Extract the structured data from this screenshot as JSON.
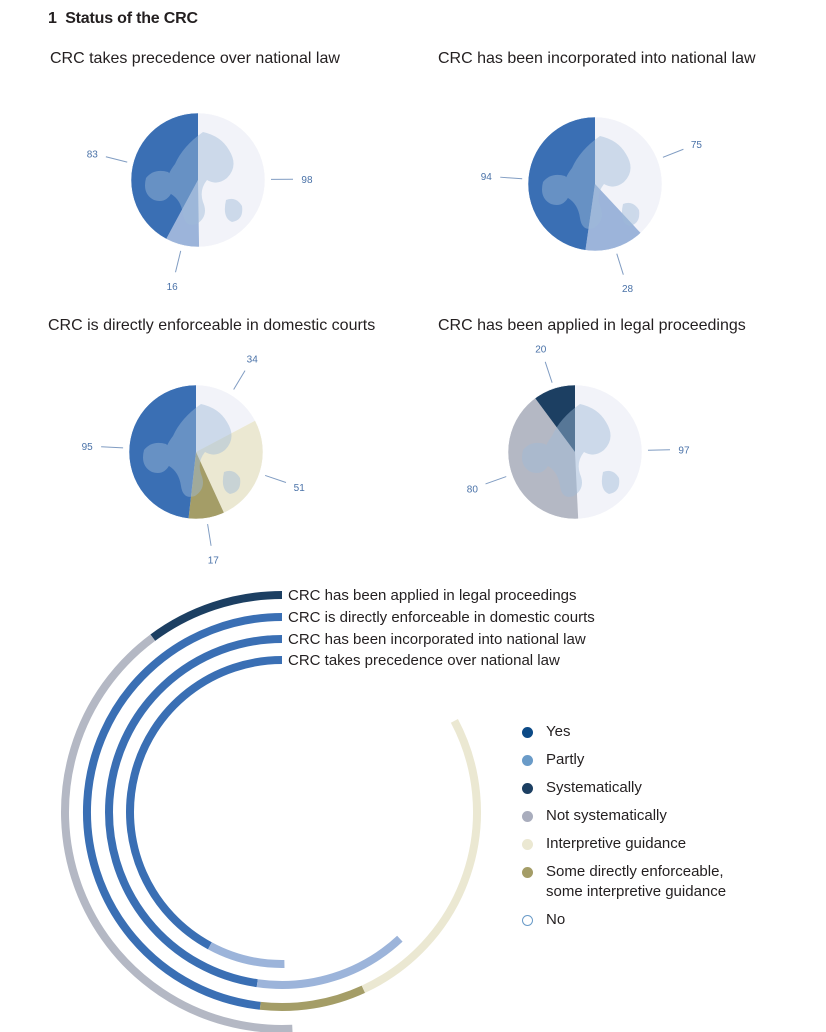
{
  "header": {
    "number": "1",
    "title": "Status of the CRC"
  },
  "colors": {
    "yes": "#3a6fb4",
    "partly": "#9cb4da",
    "systematically": "#1c3f62",
    "not_systematically": "#b4b8c4",
    "interpretive_guidance": "#ebe8d2",
    "some_enforceable": "#a49d67",
    "no": "#f2f3f9",
    "no_border": "#6a9bc8",
    "label": "#4a72a8",
    "land": "#9fbbd9"
  },
  "legend": [
    {
      "key": "yes",
      "label": "Yes",
      "color": "#0c4a86"
    },
    {
      "key": "partly",
      "label": "Partly",
      "color": "#6a9bc8"
    },
    {
      "key": "systematically",
      "label": "Systematically",
      "color": "#1c3f62"
    },
    {
      "key": "not_systematically",
      "label": "Not systematically",
      "color": "#a9adbd"
    },
    {
      "key": "interpretive_guidance",
      "label": "Interpretive guidance",
      "color": "#ebe8d2"
    },
    {
      "key": "some_enforceable",
      "label": "Some directly enforceable,\nsome interpretive guidance",
      "color": "#a49d67"
    },
    {
      "key": "no",
      "label": "No",
      "color": "#ffffff"
    }
  ],
  "chart_data": [
    {
      "type": "pie",
      "title": "CRC takes precedence over national law",
      "slices": [
        {
          "category": "No",
          "value": 98
        },
        {
          "category": "Partly",
          "value": 16
        },
        {
          "category": "Yes",
          "value": 83
        }
      ]
    },
    {
      "type": "pie",
      "title": "CRC has been incorporated into national law",
      "slices": [
        {
          "category": "No",
          "value": 75
        },
        {
          "category": "Partly",
          "value": 28
        },
        {
          "category": "Yes",
          "value": 94
        }
      ]
    },
    {
      "type": "pie",
      "title": "CRC is directly enforceable in domestic courts",
      "slices": [
        {
          "category": "No",
          "value": 34
        },
        {
          "category": "Interpretive guidance",
          "value": 51
        },
        {
          "category": "Some directly enforceable, some interpretive guidance",
          "value": 17
        },
        {
          "category": "Yes",
          "value": 95
        }
      ]
    },
    {
      "type": "pie",
      "title": "CRC has been applied in legal proceedings",
      "slices": [
        {
          "category": "No",
          "value": 97
        },
        {
          "category": "Not systematically",
          "value": 80
        },
        {
          "category": "Systematically",
          "value": 20
        }
      ]
    }
  ],
  "radial": {
    "type": "radial-bar",
    "rings": [
      {
        "label": "CRC has been applied in legal proceedings",
        "segments": [
          {
            "category": "Systematically",
            "value": 20
          },
          {
            "category": "Not systematically",
            "value": 80
          },
          {
            "category": "No",
            "value": 97
          }
        ]
      },
      {
        "label": "CRC is directly enforceable in domestic courts",
        "segments": [
          {
            "category": "Yes",
            "value": 95
          },
          {
            "category": "Some directly enforceable, some interpretive guidance",
            "value": 17
          },
          {
            "category": "Interpretive guidance",
            "value": 51
          },
          {
            "category": "No",
            "value": 34
          }
        ]
      },
      {
        "label": "CRC has been incorporated into national law",
        "segments": [
          {
            "category": "Yes",
            "value": 94
          },
          {
            "category": "Partly",
            "value": 28
          },
          {
            "category": "No",
            "value": 75
          }
        ]
      },
      {
        "label": "CRC takes precedence over national law",
        "segments": [
          {
            "category": "Yes",
            "value": 83
          },
          {
            "category": "Partly",
            "value": 16
          },
          {
            "category": "No",
            "value": 98
          }
        ]
      }
    ]
  }
}
